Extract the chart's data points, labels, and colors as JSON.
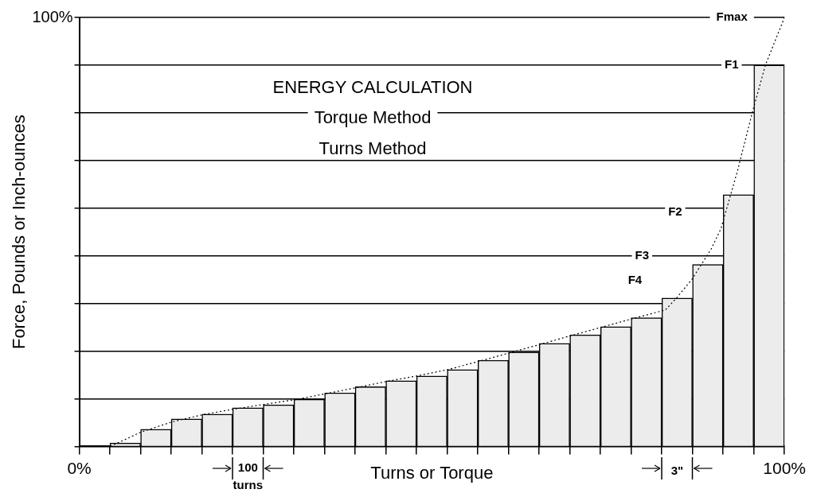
{
  "chart_data": {
    "type": "bar",
    "xlabel": "Turns or Torque",
    "ylabel": "Force, Pounds or Inch-ounces",
    "x": [
      6.52,
      10.87,
      15.22,
      19.57,
      23.91,
      28.26,
      32.61,
      36.96,
      41.3,
      45.65,
      50,
      54.35,
      58.7,
      63.04,
      67.39,
      71.74,
      76.09,
      80.43,
      84.78,
      89.13,
      93.48,
      97.83
    ],
    "series": [
      {
        "color": "#ececec",
        "values": [
          0.8,
          4.0,
          6.4,
          7.5,
          9.0,
          9.7,
          11.0,
          12.5,
          13.9,
          15.3,
          16.4,
          17.9,
          20.1,
          22.0,
          24.0,
          26.0,
          27.9,
          30.0,
          34.6,
          42.4,
          58.7,
          88.9
        ]
      },
      {
        "type": "line",
        "color": "#000000",
        "line_style": "dotted",
        "marker": "none",
        "x": [
          4.4,
          8.7,
          13.1,
          17.5,
          21.9,
          26.2,
          30.6,
          35,
          39.3,
          43.7,
          48.1,
          52.5,
          56.8,
          61.2,
          65.6,
          69.9,
          74.3,
          78.7,
          83.1,
          84.7,
          86.9,
          89.6,
          91,
          93.3,
          95.5,
          97.3,
          100
        ],
        "values": [
          0,
          3.3,
          5.7,
          7.4,
          8.7,
          9.8,
          10.9,
          12.3,
          13.7,
          15.2,
          16.5,
          18,
          19.9,
          21.9,
          23.9,
          25.9,
          27.9,
          29.9,
          31.8,
          34.6,
          39,
          46,
          50.8,
          64,
          78.2,
          88.9,
          100
        ]
      }
    ],
    "xlim": [
      0,
      100
    ],
    "xticks": [
      {
        "value": 0,
        "label": "0%"
      },
      {
        "value": 4.35,
        "label": null
      },
      {
        "value": 8.7,
        "label": null
      },
      {
        "value": 13.04,
        "label": null
      },
      {
        "value": 17.39,
        "label": null
      },
      {
        "value": 21.74,
        "label": null
      },
      {
        "value": 26.09,
        "label": null
      },
      {
        "value": 30.43,
        "label": null
      },
      {
        "value": 34.78,
        "label": null
      },
      {
        "value": 39.13,
        "label": null
      },
      {
        "value": 43.48,
        "label": null
      },
      {
        "value": 47.83,
        "label": null
      },
      {
        "value": 52.17,
        "label": null
      },
      {
        "value": 56.52,
        "label": null
      },
      {
        "value": 60.87,
        "label": null
      },
      {
        "value": 65.22,
        "label": null
      },
      {
        "value": 69.57,
        "label": null
      },
      {
        "value": 73.91,
        "label": null
      },
      {
        "value": 78.26,
        "label": null
      },
      {
        "value": 82.61,
        "label": null
      },
      {
        "value": 86.96,
        "label": null
      },
      {
        "value": 91.3,
        "label": null
      },
      {
        "value": 95.65,
        "label": null
      },
      {
        "value": 100,
        "label": "100%"
      }
    ],
    "ylim": [
      0,
      100
    ],
    "yticks": [
      {
        "value": 0,
        "label": null
      },
      {
        "value": 11.1,
        "label": null
      },
      {
        "value": 22.2,
        "label": null
      },
      {
        "value": 33.3,
        "label": null
      },
      {
        "value": 44.4,
        "label": null
      },
      {
        "value": 55.6,
        "label": null
      },
      {
        "value": 66.7,
        "label": null
      },
      {
        "value": 77.8,
        "label": null
      },
      {
        "value": 88.9,
        "label": null
      },
      {
        "value": 100,
        "label": "100%"
      }
    ],
    "grid": "y",
    "legend": false,
    "annotations": [
      "ENERGY CALCULATION",
      "Torque Method",
      "Turns Method",
      "Fmax",
      {
        "text": "F1",
        "x": 92.5,
        "y": 88.9
      },
      {
        "text": "F2",
        "x": 84.5,
        "y": 54.6
      },
      {
        "text": "F3",
        "x": 79.8,
        "y": 44.4
      },
      {
        "text": "F4",
        "x": 78.8,
        "y": 38.6
      },
      "100",
      "turns",
      "3\""
    ]
  }
}
